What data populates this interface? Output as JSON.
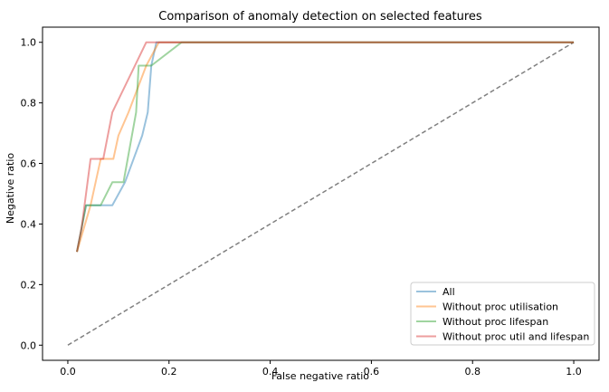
{
  "chart_data": {
    "type": "line",
    "title": "Comparison of anomaly detection on selected features",
    "xlabel": "False negative ratio",
    "ylabel": "Negative ratio",
    "xlim": [
      -0.05,
      1.05
    ],
    "ylim": [
      -0.05,
      1.05
    ],
    "xticks": [
      0.0,
      0.2,
      0.4,
      0.6,
      0.8,
      1.0
    ],
    "yticks": [
      0.0,
      0.2,
      0.4,
      0.6,
      0.8,
      1.0
    ],
    "xtick_labels": [
      "0.0",
      "0.2",
      "0.4",
      "0.6",
      "0.8",
      "1.0"
    ],
    "ytick_labels": [
      "0.0",
      "0.2",
      "0.4",
      "0.6",
      "0.8",
      "1.0"
    ],
    "grid": false,
    "legend_position": "lower-right",
    "series": [
      {
        "name": "All",
        "color": "#1f77b4",
        "x": [
          0.018,
          0.027,
          0.036,
          0.088,
          0.113,
          0.147,
          0.158,
          0.165,
          0.175,
          1.0
        ],
        "y": [
          0.308,
          0.385,
          0.462,
          0.462,
          0.538,
          0.692,
          0.769,
          0.923,
          1.0,
          1.0
        ]
      },
      {
        "name": "Without proc utilisation",
        "color": "#ff7f0e",
        "x": [
          0.018,
          0.045,
          0.065,
          0.09,
          0.1,
          0.12,
          0.155,
          0.18,
          1.0
        ],
        "y": [
          0.308,
          0.462,
          0.615,
          0.615,
          0.692,
          0.769,
          0.923,
          1.0,
          1.0
        ]
      },
      {
        "name": "Without proc lifespan",
        "color": "#2ca02c",
        "x": [
          0.018,
          0.036,
          0.065,
          0.088,
          0.11,
          0.135,
          0.14,
          0.165,
          0.225,
          1.0
        ],
        "y": [
          0.308,
          0.462,
          0.462,
          0.538,
          0.538,
          0.769,
          0.923,
          0.923,
          1.0,
          1.0
        ]
      },
      {
        "name": "Without proc util and lifespan",
        "color": "#d62728",
        "x": [
          0.018,
          0.027,
          0.045,
          0.07,
          0.088,
          0.155,
          0.158,
          1.0
        ],
        "y": [
          0.308,
          0.385,
          0.615,
          0.615,
          0.769,
          1.0,
          1.0,
          1.0
        ]
      }
    ],
    "reference_line": {
      "color": "#808080",
      "style": "dashed",
      "x": [
        0.0,
        1.0
      ],
      "y": [
        0.0,
        1.0
      ]
    }
  }
}
